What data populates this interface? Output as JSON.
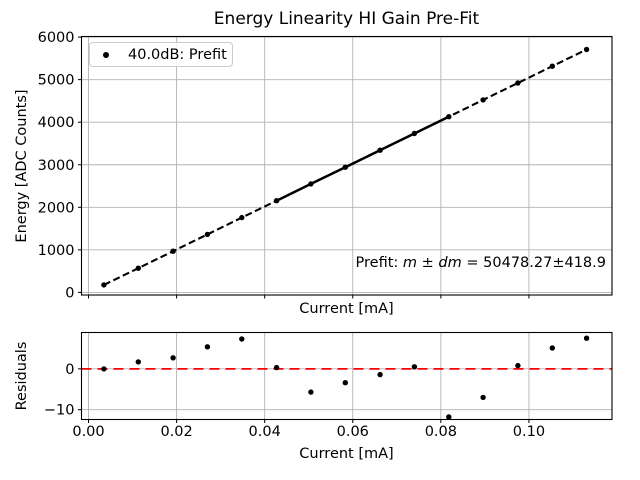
{
  "colors": {
    "marker": "#000000",
    "fit_line": "#000000",
    "reference_line": "#ff0000",
    "grid": "#b2b2b2",
    "axis": "#000000",
    "legend_border": "#cccccc"
  },
  "annotation": {
    "prefix": "Prefit: ",
    "m": "m",
    "pm": " ± ",
    "dm": "dm",
    "eq": " = ",
    "value": "50478.27±418.9"
  },
  "chart_data": [
    {
      "type": "scatter",
      "title": "Energy Linearity HI Gain Pre-Fit",
      "xlabel": "Current [mA]",
      "ylabel": "Energy [ADC Counts]",
      "grid": true,
      "legend_position": "upper left",
      "legend": [
        {
          "label": "40.0dB: Prefit",
          "marker": "dot",
          "color": "#000000"
        }
      ],
      "annotation": "Prefit: m ± dm = 50478.27±418.9",
      "xlim": [
        -0.00159,
        0.11886
      ],
      "ylim": [
        -61,
        6014
      ],
      "xticks": [
        0.0,
        0.02,
        0.04,
        0.06,
        0.08,
        0.1
      ],
      "xticklabels": [],
      "yticks": [
        0,
        1000,
        2000,
        3000,
        4000,
        5000,
        6000
      ],
      "yticklabels": [
        "0",
        "1000",
        "2000",
        "3000",
        "4000",
        "5000",
        "6000"
      ],
      "x": [
        0.0035,
        0.0113,
        0.0192,
        0.027,
        0.0348,
        0.0427,
        0.0505,
        0.0583,
        0.0662,
        0.074,
        0.0818,
        0.0896,
        0.0975,
        0.1053,
        0.1131
      ],
      "y": [
        177,
        570,
        969,
        1363,
        1757,
        2155,
        2549,
        2943,
        3342,
        3735,
        4129,
        4523,
        4922,
        5315,
        5709
      ],
      "fit_line": {
        "style": "dashed",
        "color": "#000000",
        "slope": 50478.27,
        "slope_uncertainty": 418.9,
        "solid_segment_x": [
          0.0427,
          0.0818
        ]
      }
    },
    {
      "type": "scatter",
      "title": "",
      "xlabel": "Current [mA]",
      "ylabel": "Residuals",
      "grid": true,
      "xlim": [
        -0.00159,
        0.11886
      ],
      "ylim": [
        -12.4,
        8.9
      ],
      "xticks": [
        0.0,
        0.02,
        0.04,
        0.06,
        0.08,
        0.1
      ],
      "xticklabels": [
        "0.00",
        "0.02",
        "0.04",
        "0.06",
        "0.08",
        "0.10"
      ],
      "yticks": [
        -10,
        0
      ],
      "yticklabels": [
        "−10",
        "0"
      ],
      "x": [
        0.0035,
        0.0113,
        0.0192,
        0.027,
        0.0348,
        0.0427,
        0.0505,
        0.0583,
        0.0662,
        0.074,
        0.0818,
        0.0896,
        0.0975,
        0.1053,
        0.1131
      ],
      "y": [
        0.0,
        1.7,
        2.7,
        5.4,
        7.3,
        0.3,
        -5.7,
        -3.4,
        -1.4,
        0.5,
        -11.8,
        -7.0,
        0.8,
        5.1,
        7.5
      ],
      "reference_line": {
        "y": 0,
        "style": "dashed",
        "color": "#ff0000"
      }
    }
  ]
}
